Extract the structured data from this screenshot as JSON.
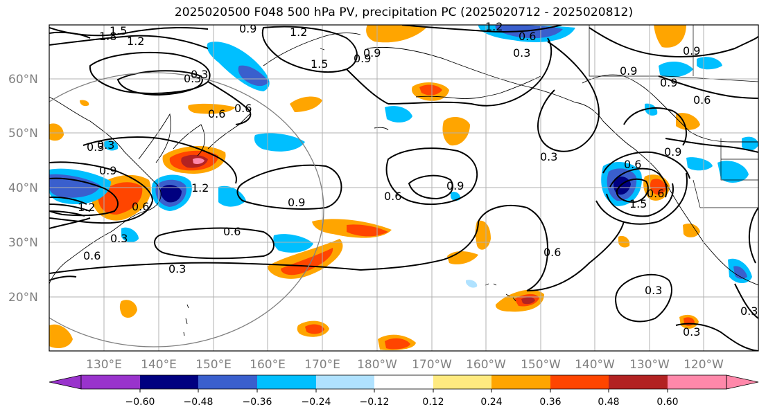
{
  "title": "2025020500 F048 500 hPa PV, precipitation PC (2025020712 - 2025020812)",
  "latitude_labels": [
    "60°N",
    "50°N",
    "40°N",
    "30°N",
    "20°N"
  ],
  "longitude_labels": [
    "130°E",
    "140°E",
    "150°E",
    "160°E",
    "170°E",
    "180°W",
    "170°W",
    "160°W",
    "150°W",
    "140°W",
    "130°W",
    "120°W"
  ],
  "contour_labels": [
    "1.8",
    "1.5",
    "1.2",
    "0.9",
    "1.2",
    "1.5",
    "0.9",
    "1.2",
    "0.6",
    "0.3",
    "0.9",
    "0.6",
    "0.3",
    "0.6",
    "0.3",
    "0.9",
    "0.6",
    "0.9",
    "1.2",
    "0.9",
    "0.6",
    "0.9",
    "0.6",
    "0.9",
    "0.6",
    "0.3",
    "0.6",
    "0.3",
    "0.3",
    "0.6",
    "0.9",
    "0.6",
    "0.9",
    "1.5",
    "1.2",
    "0.6",
    "0.3",
    "0.3",
    "0.3",
    "0.3",
    "0.3"
  ],
  "colorbar": {
    "tick_labels": [
      "−0.60",
      "−0.48",
      "−0.36",
      "−0.24",
      "−0.12",
      "0.12",
      "0.24",
      "0.36",
      "0.48",
      "0.60"
    ],
    "colors": [
      "#9933cc",
      "#000080",
      "#3a5fcd",
      "#00bfff",
      "#b0e2ff",
      "#ffffff",
      "#ffea80",
      "#ffa500",
      "#ff4500",
      "#b22222",
      "#ff88aa"
    ]
  },
  "legend_colors": {
    "neg_strong": "#3a5fcd",
    "neg_mid": "#00bfff",
    "neg_weak": "#b0e2ff",
    "pos_weak": "#ffea80",
    "pos_mid": "#ffa500",
    "pos_strong": "#ff4500",
    "pos_vstrong": "#b22222",
    "pos_max": "#ff88aa",
    "neg_max": "#000080",
    "grid": "#b0b0b0",
    "circle": "#808080"
  }
}
